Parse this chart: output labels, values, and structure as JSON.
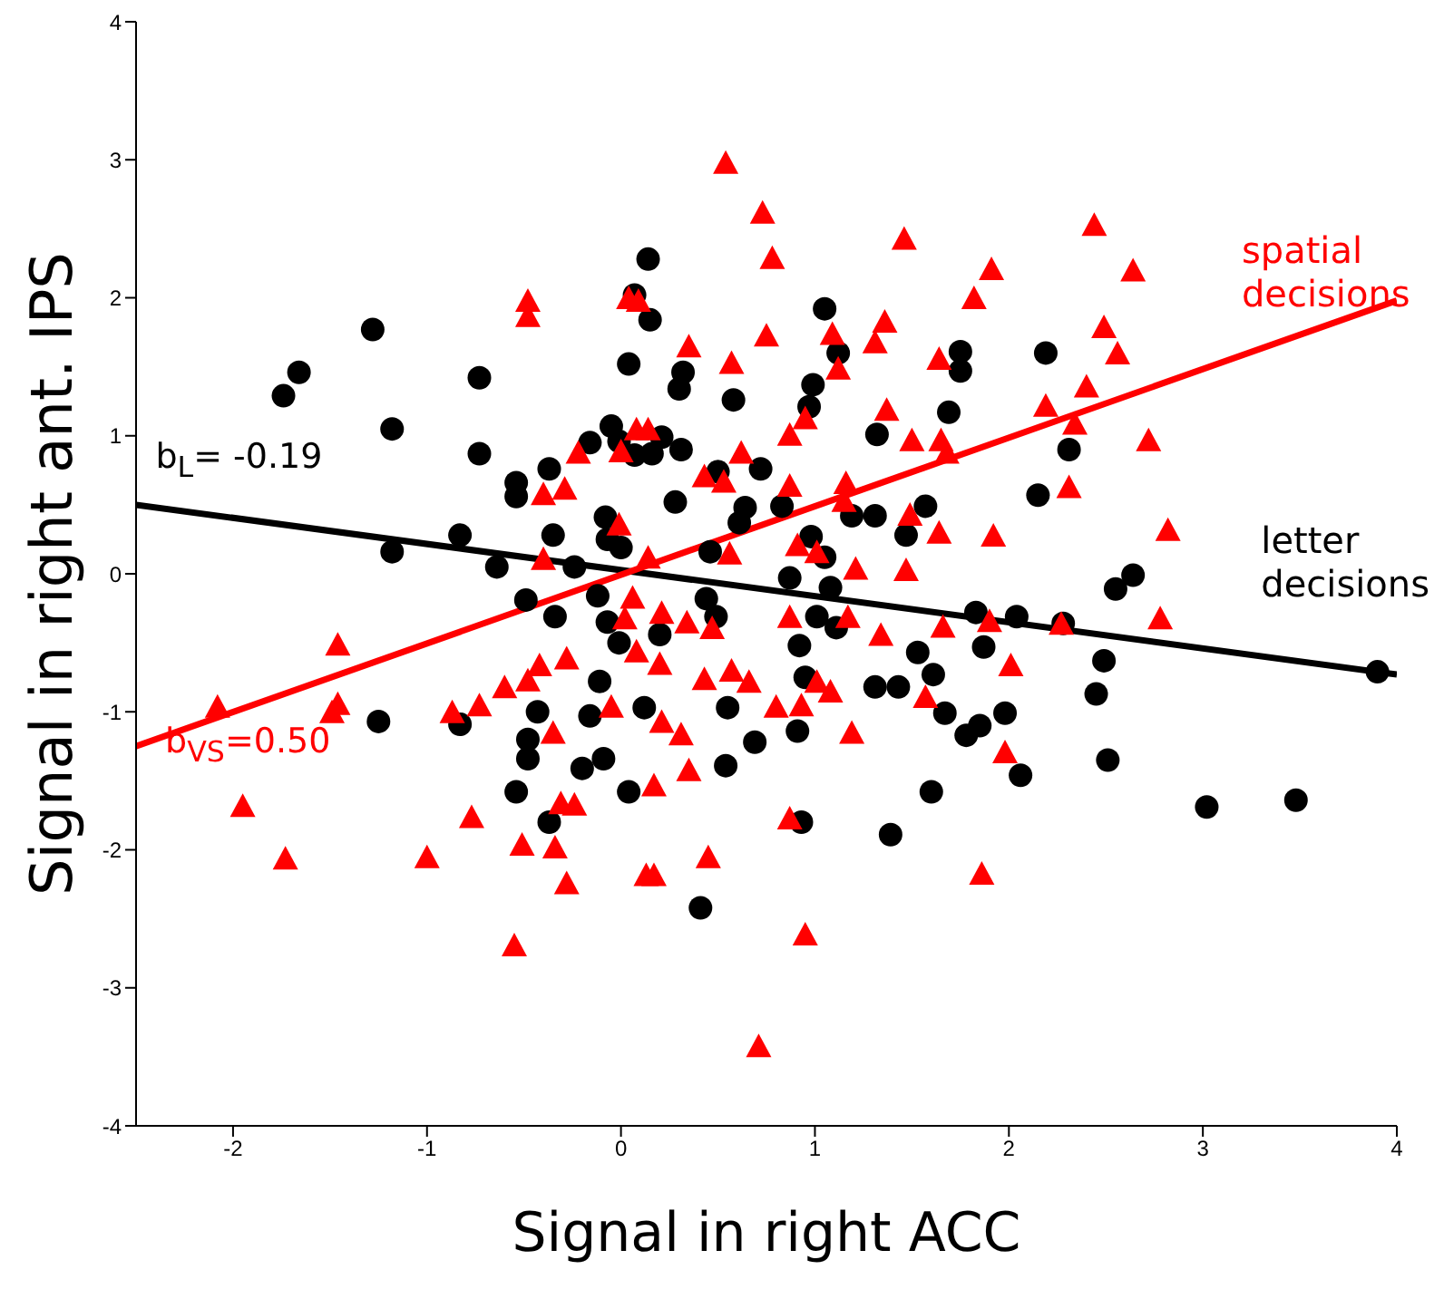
{
  "chart_data": {
    "type": "scatter",
    "xlabel": "Signal in right ACC",
    "ylabel": "Signal in right  ant. IPS",
    "xlim": [
      -2.5,
      4
    ],
    "xticks": [
      -2,
      -1,
      0,
      1,
      2,
      3,
      4
    ],
    "ylim": [
      -4,
      4
    ],
    "yticks": [
      -4,
      -3,
      -2,
      -1,
      0,
      1,
      2,
      3,
      4
    ],
    "grid": false,
    "annotations": [
      "b$_{L}$= -0.19",
      "b$_{VS}$=0.50"
    ],
    "series": [
      {
        "name": "spatial decisions",
        "type": "scatter",
        "marker": "triangle",
        "color": "#ff0000",
        "x": [
          0.54,
          0.73,
          -0.48,
          -0.48,
          0.04,
          0.09,
          0.35,
          0.57,
          0.75,
          0.08,
          0.14,
          0.0,
          -0.22,
          0.62,
          0.43,
          0.53,
          -0.4,
          -0.29,
          -0.01,
          0.14,
          0.56,
          -0.4,
          2.44,
          2.64,
          1.46,
          1.91,
          1.82,
          1.36,
          1.09,
          1.31,
          0.78,
          2.49,
          2.56,
          1.64,
          1.12,
          2.4,
          2.19,
          2.34,
          1.37,
          0.95,
          0.87,
          1.5,
          1.65,
          1.68,
          2.72,
          1.16,
          1.15,
          0.87,
          2.31,
          1.49,
          1.64,
          1.92,
          2.82,
          1.21,
          1.47,
          0.91,
          1.01,
          -1.46,
          -2.08,
          -1.46,
          -1.49,
          -1.95,
          -1.73,
          -1.0,
          -0.77,
          -0.87,
          -0.73,
          -0.6,
          -0.48,
          -0.42,
          -0.28,
          0.06,
          0.02,
          0.21,
          0.34,
          0.47,
          0.08,
          0.2,
          0.43,
          0.57,
          0.66,
          -0.05,
          -0.35,
          0.21,
          0.31,
          0.35,
          0.17,
          -0.31,
          -0.24,
          -0.51,
          -0.34,
          -0.28,
          0.13,
          0.17,
          0.45,
          -0.55,
          0.71,
          0.87,
          1.17,
          1.34,
          1.66,
          1.9,
          2.27,
          2.01,
          1.01,
          1.08,
          0.8,
          0.93,
          1.19,
          1.57,
          1.98,
          0.87,
          1.86,
          0.95,
          2.78
        ],
        "values": [
          2.97,
          2.61,
          1.97,
          1.86,
          1.99,
          1.97,
          1.64,
          1.52,
          1.72,
          1.04,
          1.04,
          0.88,
          0.87,
          0.87,
          0.7,
          0.66,
          0.57,
          0.61,
          0.35,
          0.11,
          0.14,
          0.1,
          2.52,
          2.19,
          2.42,
          2.2,
          1.99,
          1.82,
          1.73,
          1.67,
          2.28,
          1.78,
          1.59,
          1.55,
          1.48,
          1.35,
          1.21,
          1.08,
          1.18,
          1.12,
          1.0,
          0.96,
          0.96,
          0.87,
          0.96,
          0.65,
          0.52,
          0.63,
          0.62,
          0.42,
          0.29,
          0.27,
          0.31,
          0.03,
          0.02,
          0.2,
          0.15,
          -0.52,
          -0.97,
          -0.95,
          -1.01,
          -1.69,
          -2.07,
          -2.06,
          -1.77,
          -1.01,
          -0.96,
          -0.83,
          -0.78,
          -0.67,
          -0.62,
          -0.18,
          -0.33,
          -0.29,
          -0.36,
          -0.4,
          -0.57,
          -0.66,
          -0.77,
          -0.71,
          -0.79,
          -0.97,
          -1.16,
          -1.08,
          -1.17,
          -1.43,
          -1.54,
          -1.67,
          -1.68,
          -1.97,
          -1.99,
          -2.25,
          -2.19,
          -2.19,
          -2.06,
          -2.7,
          -3.43,
          -0.32,
          -0.32,
          -0.45,
          -0.39,
          -0.35,
          -0.37,
          -0.67,
          -0.79,
          -0.86,
          -0.97,
          -0.96,
          -1.16,
          -0.9,
          -1.3,
          -1.78,
          -2.18,
          -2.62,
          -0.33
        ]
      },
      {
        "name": "letter decisions",
        "type": "scatter",
        "marker": "circle",
        "color": "#000000",
        "x": [
          -1.74,
          -1.66,
          -1.28,
          -1.18,
          -0.73,
          -0.73,
          -0.54,
          -0.54,
          -0.37,
          -0.35,
          -1.18,
          -0.83,
          -0.64,
          -0.24,
          -0.16,
          -0.05,
          -0.01,
          0.07,
          0.04,
          0.14,
          0.15,
          0.07,
          0.21,
          0.16,
          0.31,
          0.32,
          0.3,
          0.58,
          0.5,
          0.28,
          -0.08,
          -0.07,
          0.0,
          0.46,
          0.64,
          0.61,
          0.72,
          1.05,
          1.12,
          0.99,
          0.97,
          1.75,
          1.75,
          1.69,
          1.32,
          2.19,
          2.31,
          2.15,
          1.57,
          1.31,
          1.19,
          1.47,
          0.98,
          1.05,
          0.83,
          0.87,
          1.08,
          2.64,
          2.55,
          -1.25,
          -0.83,
          -0.49,
          -0.34,
          -0.12,
          -0.07,
          -0.01,
          0.2,
          0.44,
          0.49,
          -0.11,
          -0.43,
          -0.48,
          -0.48,
          -0.16,
          0.12,
          -0.2,
          -0.09,
          -0.54,
          0.04,
          -0.37,
          0.55,
          0.54,
          0.69,
          0.41,
          1.01,
          1.11,
          0.92,
          0.95,
          0.91,
          1.31,
          1.43,
          1.53,
          1.61,
          1.67,
          1.78,
          1.85,
          1.98,
          1.87,
          1.83,
          2.04,
          2.28,
          2.49,
          2.45,
          2.51,
          2.06,
          1.6,
          1.39,
          0.93,
          3.02,
          3.48,
          3.9
        ],
        "values": [
          1.29,
          1.46,
          1.77,
          1.05,
          1.42,
          0.87,
          0.66,
          0.56,
          0.76,
          0.28,
          0.16,
          0.28,
          0.05,
          0.05,
          0.95,
          1.07,
          0.96,
          0.86,
          1.52,
          2.28,
          1.84,
          2.02,
          0.99,
          0.87,
          0.9,
          1.46,
          1.34,
          1.26,
          0.74,
          0.52,
          0.41,
          0.25,
          0.19,
          0.16,
          0.48,
          0.37,
          0.76,
          1.92,
          1.6,
          1.37,
          1.21,
          1.61,
          1.47,
          1.17,
          1.01,
          1.6,
          0.9,
          0.57,
          0.49,
          0.42,
          0.42,
          0.28,
          0.27,
          0.12,
          0.49,
          -0.03,
          -0.1,
          -0.01,
          -0.11,
          -1.07,
          -1.09,
          -0.19,
          -0.31,
          -0.16,
          -0.35,
          -0.5,
          -0.44,
          -0.18,
          -0.31,
          -0.78,
          -1.0,
          -1.2,
          -1.34,
          -1.03,
          -0.97,
          -1.41,
          -1.34,
          -1.58,
          -1.58,
          -1.8,
          -0.97,
          -1.39,
          -1.22,
          -2.42,
          -0.31,
          -0.39,
          -0.52,
          -0.75,
          -1.14,
          -0.82,
          -0.82,
          -0.57,
          -0.73,
          -1.01,
          -1.17,
          -1.1,
          -1.01,
          -0.53,
          -0.28,
          -0.31,
          -0.36,
          -0.63,
          -0.87,
          -1.35,
          -1.46,
          -1.58,
          -1.89,
          -1.8,
          -1.69,
          -1.64,
          -0.71
        ]
      },
      {
        "type": "line",
        "color": "#000000",
        "x": [
          -2.5,
          4
        ],
        "values": [
          0.5,
          -0.73
        ]
      },
      {
        "type": "line",
        "color": "#ff0000",
        "x": [
          -2.5,
          4
        ],
        "values": [
          -1.25,
          1.98
        ]
      }
    ]
  }
}
